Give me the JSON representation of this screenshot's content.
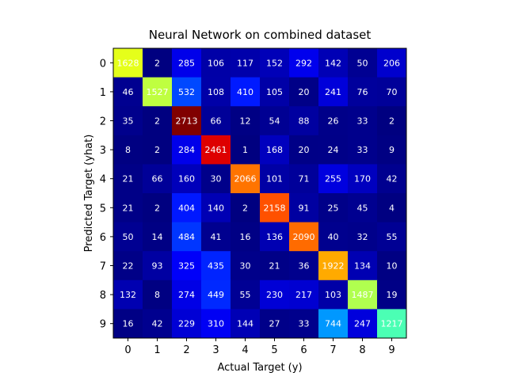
{
  "chart_data": {
    "type": "heatmap",
    "title": "Neural Network on combined dataset",
    "xlabel": "Actual Target (y)",
    "ylabel": "Predicted Target (yhat)",
    "x_categories": [
      "0",
      "1",
      "2",
      "3",
      "4",
      "5",
      "6",
      "7",
      "8",
      "9"
    ],
    "y_categories": [
      "0",
      "1",
      "2",
      "3",
      "4",
      "5",
      "6",
      "7",
      "8",
      "9"
    ],
    "values": [
      [
        1628,
        2,
        285,
        106,
        117,
        152,
        292,
        142,
        50,
        206
      ],
      [
        46,
        1527,
        532,
        108,
        410,
        105,
        20,
        241,
        76,
        70
      ],
      [
        35,
        2,
        2713,
        66,
        12,
        54,
        88,
        26,
        33,
        2
      ],
      [
        8,
        2,
        284,
        2461,
        1,
        168,
        20,
        24,
        33,
        9
      ],
      [
        21,
        66,
        160,
        30,
        2066,
        101,
        71,
        255,
        170,
        42
      ],
      [
        21,
        2,
        404,
        140,
        2,
        2158,
        91,
        25,
        45,
        4
      ],
      [
        50,
        14,
        484,
        41,
        16,
        136,
        2090,
        40,
        32,
        55
      ],
      [
        22,
        93,
        325,
        435,
        30,
        21,
        36,
        1922,
        134,
        10
      ],
      [
        132,
        8,
        274,
        449,
        55,
        230,
        217,
        103,
        1487,
        19
      ],
      [
        16,
        42,
        229,
        310,
        144,
        27,
        33,
        744,
        247,
        1217
      ]
    ],
    "colormap": "jet",
    "value_range": [
      1,
      2713
    ],
    "cell_label_color": "#ffffff"
  }
}
